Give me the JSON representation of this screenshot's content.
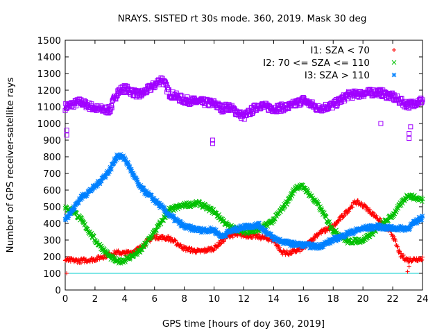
{
  "chart_data": {
    "type": "scatter",
    "title": "NRAYS. SISTED rt 30s mode. 360, 2019. Mask 30 deg",
    "xlabel": "GPS time [hours of doy 360, 2019]",
    "ylabel": "Number of GPS receiver-satellite rays",
    "xlim": [
      0,
      24
    ],
    "ylim": [
      0,
      1500
    ],
    "xticks": [
      "0",
      "2",
      "4",
      "6",
      "8",
      "10",
      "12",
      "14",
      "16",
      "18",
      "20",
      "22",
      "24"
    ],
    "yticks": [
      "0",
      "100",
      "200",
      "300",
      "400",
      "500",
      "600",
      "700",
      "800",
      "900",
      "1000",
      "1100",
      "1200",
      "1300",
      "1400",
      "1500"
    ],
    "legend_position": "top-right",
    "threshold_line": {
      "value": 100,
      "color": "#00cccc"
    },
    "series": [
      {
        "name": "I1: SZA < 70",
        "marker": "+",
        "color": "#ff0000",
        "x": [
          0,
          1,
          2,
          3,
          3.5,
          4,
          4.5,
          5,
          5.5,
          6,
          7,
          8,
          9,
          10,
          11,
          12,
          13,
          14,
          14.5,
          15,
          16,
          17,
          18,
          19,
          19.5,
          20,
          21,
          22,
          22.5,
          23,
          24
        ],
        "y": [
          180,
          175,
          185,
          215,
          225,
          220,
          230,
          250,
          290,
          320,
          310,
          250,
          230,
          250,
          330,
          330,
          320,
          300,
          230,
          220,
          250,
          340,
          380,
          480,
          530,
          510,
          430,
          330,
          210,
          180,
          190
        ]
      },
      {
        "name": "I2: 70 <= SZA <= 110",
        "marker": "x",
        "color": "#00c000",
        "x": [
          0,
          0.5,
          1,
          2,
          3,
          3.5,
          4,
          5,
          6,
          7,
          8,
          9,
          10,
          11,
          12,
          13,
          14,
          15,
          15.5,
          16,
          17,
          18,
          19,
          20,
          21,
          22,
          23,
          24
        ],
        "y": [
          490,
          480,
          430,
          300,
          200,
          170,
          180,
          230,
          350,
          480,
          510,
          520,
          470,
          380,
          350,
          360,
          420,
          540,
          620,
          620,
          510,
          360,
          290,
          300,
          370,
          450,
          570,
          540
        ]
      },
      {
        "name": "I3: SZA > 110",
        "marker": "*",
        "color": "#0080ff",
        "x": [
          0,
          0.5,
          1,
          2,
          3,
          3.5,
          4,
          5,
          6,
          7,
          8,
          9,
          10,
          10.5,
          11,
          12,
          13,
          14,
          15,
          16,
          17,
          18,
          19,
          20,
          21,
          22,
          23,
          24
        ],
        "y": [
          430,
          480,
          550,
          620,
          720,
          810,
          790,
          620,
          540,
          450,
          380,
          360,
          360,
          320,
          350,
          380,
          390,
          310,
          280,
          270,
          260,
          300,
          340,
          370,
          380,
          370,
          370,
          440
        ]
      },
      {
        "name": "",
        "marker": "square",
        "color": "#a000ff",
        "x": [
          0,
          1,
          2,
          3,
          3.5,
          4,
          5,
          6,
          6.5,
          7,
          8,
          9,
          10,
          10.5,
          11,
          12,
          13,
          14,
          15,
          16,
          17,
          18,
          19,
          20,
          21,
          22,
          23,
          24
        ],
        "y": [
          1100,
          1130,
          1090,
          1080,
          1190,
          1210,
          1170,
          1230,
          1270,
          1180,
          1140,
          1130,
          1120,
          1090,
          1100,
          1040,
          1110,
          1090,
          1100,
          1140,
          1090,
          1110,
          1170,
          1180,
          1190,
          1160,
          1110,
          1140
        ]
      }
    ],
    "outliers": [
      {
        "series": 3,
        "x": 0.1,
        "y": 930
      },
      {
        "series": 3,
        "x": 0.1,
        "y": 960
      },
      {
        "series": 3,
        "x": 9.9,
        "y": 880
      },
      {
        "series": 3,
        "x": 9.9,
        "y": 900
      },
      {
        "series": 3,
        "x": 21.2,
        "y": 1000
      },
      {
        "series": 3,
        "x": 23.1,
        "y": 910
      },
      {
        "series": 3,
        "x": 23.1,
        "y": 940
      },
      {
        "series": 3,
        "x": 23.2,
        "y": 980
      },
      {
        "series": 0,
        "x": 0.1,
        "y": 100
      },
      {
        "series": 0,
        "x": 23.0,
        "y": 110
      },
      {
        "series": 0,
        "x": 23.1,
        "y": 140
      }
    ]
  }
}
